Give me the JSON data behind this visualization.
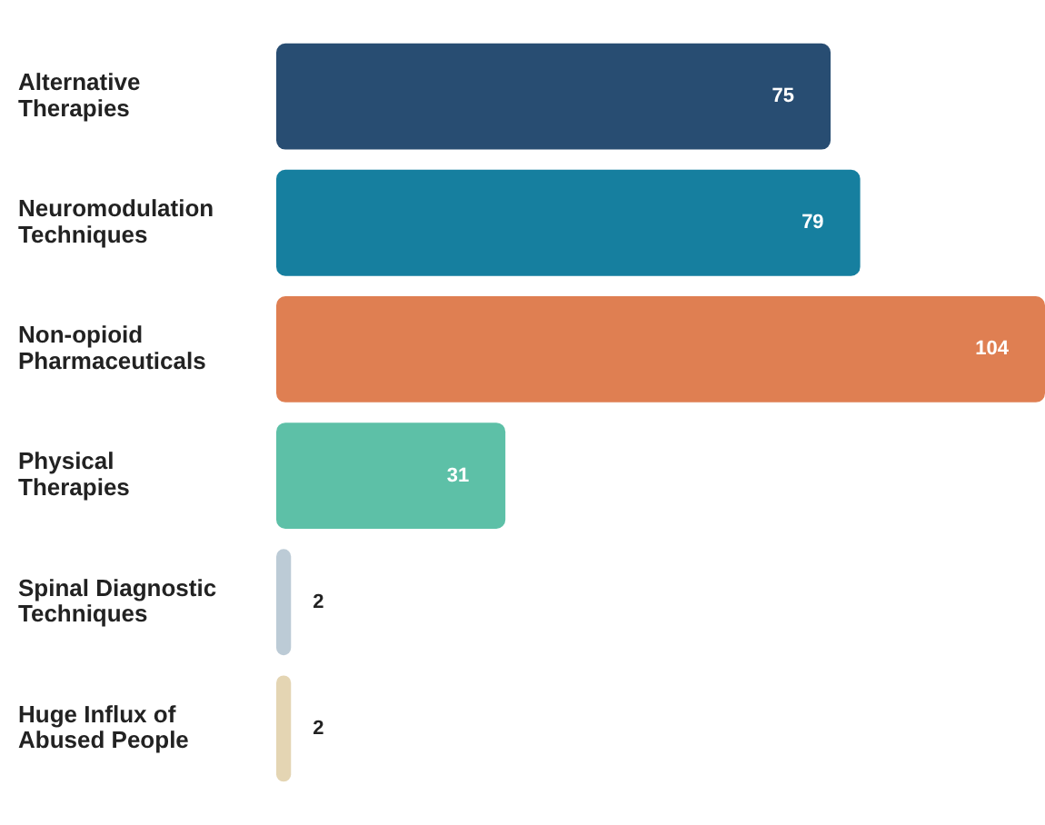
{
  "chart_data": {
    "type": "bar",
    "orientation": "horizontal",
    "categories": [
      "Alternative Therapies",
      "Neuromodulation Techniques",
      "Non-opioid Pharmaceuticals",
      "Physical Therapies",
      "Spinal Diagnostic Techniques",
      "Huge Influx of Abused People"
    ],
    "values": [
      75,
      79,
      104,
      31,
      2,
      2
    ],
    "colors": [
      "#284d72",
      "#167f9f",
      "#df7f52",
      "#5dc0a7",
      "#bccbd6",
      "#e4d5b3"
    ],
    "data_labels": true,
    "tick_labels": "y"
  }
}
